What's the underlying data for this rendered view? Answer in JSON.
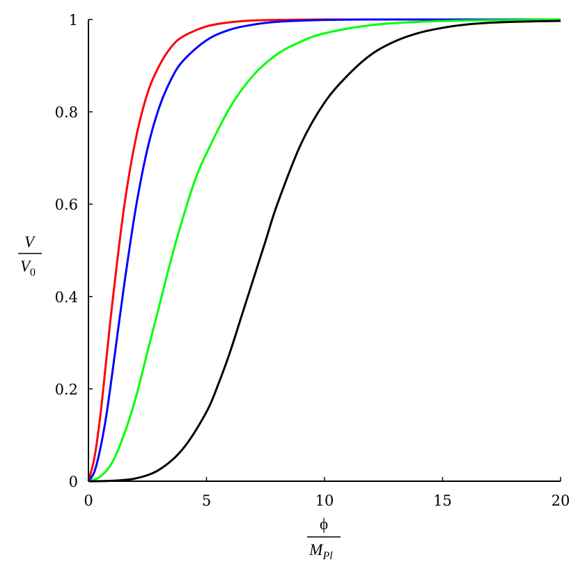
{
  "chart_data": {
    "type": "line",
    "title": "",
    "xlabel": {
      "numerator": "ϕ",
      "denominator": "M",
      "denominator_sub": "Pl"
    },
    "ylabel": {
      "numerator": "V",
      "denominator": "V",
      "denominator_sub": "0"
    },
    "xlim": [
      0,
      20
    ],
    "ylim": [
      0,
      1
    ],
    "x_ticks": [
      0,
      5,
      10,
      15,
      20
    ],
    "y_ticks": [
      0,
      0.2,
      0.4,
      0.6,
      0.8,
      1
    ],
    "x_tick_labels": [
      "0",
      "5",
      "10",
      "15",
      "20"
    ],
    "y_tick_labels": [
      "0",
      "0.2",
      "0.4",
      "0.6",
      "0.8",
      "1"
    ],
    "grid": false,
    "series": [
      {
        "color": "#ff0000",
        "x": [
          0,
          0.25,
          0.5,
          0.75,
          1,
          1.5,
          2,
          2.5,
          3,
          3.5,
          4,
          5,
          6,
          7,
          8,
          10,
          12,
          15,
          20
        ],
        "y": [
          0,
          0.05,
          0.14,
          0.26,
          0.38,
          0.59,
          0.74,
          0.84,
          0.9,
          0.94,
          0.963,
          0.985,
          0.994,
          0.998,
          0.999,
          1.0,
          1.0,
          1.0,
          1.0
        ]
      },
      {
        "color": "#0000ff",
        "x": [
          0,
          0.25,
          0.5,
          0.75,
          1,
          1.5,
          2,
          2.5,
          3,
          3.5,
          4,
          5,
          6,
          7,
          8,
          10,
          12,
          15,
          20
        ],
        "y": [
          0,
          0.02,
          0.07,
          0.14,
          0.23,
          0.42,
          0.59,
          0.72,
          0.81,
          0.87,
          0.91,
          0.955,
          0.978,
          0.989,
          0.995,
          0.999,
          1.0,
          1.0,
          1.0
        ]
      },
      {
        "color": "#00ff00",
        "x": [
          0,
          0.5,
          1,
          1.5,
          2,
          2.5,
          3,
          3.5,
          4,
          4.5,
          5,
          6,
          7,
          8,
          9,
          10,
          12,
          14,
          16,
          18,
          20
        ],
        "y": [
          0,
          0.01,
          0.04,
          0.1,
          0.18,
          0.28,
          0.38,
          0.48,
          0.57,
          0.65,
          0.71,
          0.81,
          0.88,
          0.925,
          0.952,
          0.97,
          0.988,
          0.995,
          0.998,
          0.999,
          1.0
        ]
      },
      {
        "color": "#000000",
        "x": [
          0,
          1,
          2,
          3,
          4,
          5,
          5.5,
          6,
          6.5,
          7,
          7.5,
          8,
          9,
          10,
          11,
          12,
          13,
          14,
          15,
          16,
          17,
          18,
          20
        ],
        "y": [
          0,
          0.001,
          0.006,
          0.025,
          0.07,
          0.15,
          0.21,
          0.28,
          0.36,
          0.44,
          0.52,
          0.6,
          0.73,
          0.82,
          0.88,
          0.925,
          0.953,
          0.971,
          0.982,
          0.989,
          0.993,
          0.995,
          0.997
        ]
      }
    ]
  }
}
